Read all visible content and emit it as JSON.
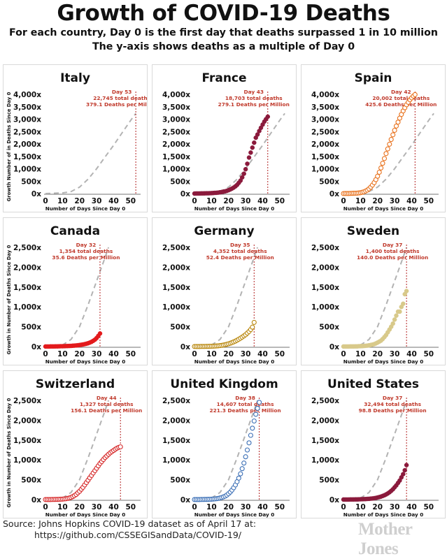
{
  "page": {
    "title": "Growth of COVID-19 Deaths",
    "subtitle1": "For each country, Day 0 is the first day that deaths surpassed 1 in 10 million",
    "subtitle2": "The y-axis shows deaths as a multiple of Day 0",
    "source_line1": "Source: Johns Hopkins COVID-19 dataset as of April 17 at:",
    "source_line2": "https://github.com/CSSEGISandData/COVID-19/",
    "brand": "Mother Jones"
  },
  "colors": {
    "dashed_reference": "#b3b3b3",
    "day_marker": "#b22222",
    "annotation_text": "#c0392b",
    "gridline_axis": "#222222"
  },
  "chart_data": [
    {
      "type": "scatter",
      "country": "Italy",
      "xlabel": "Number of Days Since Day 0",
      "ylabel": "Growth Number of in Deaths Since Day 0",
      "ylim": [
        0,
        4000
      ],
      "yticks": [
        0,
        500,
        1000,
        1500,
        2000,
        2500,
        3000,
        3500,
        4000
      ],
      "ytick_labels": [
        "0x",
        "500x",
        "1,000x",
        "1,500x",
        "2,000x",
        "2,500x",
        "3,000x",
        "3,500x",
        "4,000x"
      ],
      "xlim": [
        0,
        55
      ],
      "xticks": [
        0,
        10,
        20,
        30,
        40,
        50
      ],
      "xtick_labels": [
        "0",
        "10",
        "20",
        "30",
        "40",
        "50"
      ],
      "marker_day": 53,
      "annotation": [
        "Day 53",
        "22,745 total deaths",
        "379.1 Deaths per Million"
      ],
      "series_style": "none",
      "color": "#999999",
      "reference": {
        "x": [
          0,
          10,
          15,
          20,
          25,
          30,
          35,
          40,
          45,
          50,
          53
        ],
        "y": [
          0,
          25,
          80,
          260,
          580,
          1000,
          1480,
          1950,
          2450,
          2950,
          3230
        ]
      },
      "x": [],
      "y": []
    },
    {
      "type": "scatter",
      "country": "France",
      "xlabel": "Number of Days Since Day 0",
      "ylabel": "",
      "ylim": [
        0,
        4000
      ],
      "yticks": [
        0,
        500,
        1000,
        1500,
        2000,
        2500,
        3000,
        3500,
        4000
      ],
      "ytick_labels": [
        "0x",
        "500x",
        "1,000x",
        "1,500x",
        "2,000x",
        "2,500x",
        "3,000x",
        "3,500x",
        "4,000x"
      ],
      "xlim": [
        0,
        55
      ],
      "xticks": [
        0,
        10,
        20,
        30,
        40,
        50
      ],
      "xtick_labels": [
        "0",
        "10",
        "20",
        "30",
        "40",
        "50"
      ],
      "marker_day": 43,
      "annotation": [
        "Day 43",
        "18,703 total deaths",
        "279.1 Deaths per Million"
      ],
      "series_style": "filled",
      "color": "#8b1a3c",
      "reference": {
        "x": [
          0,
          10,
          15,
          20,
          25,
          30,
          35,
          40,
          45,
          50,
          53
        ],
        "y": [
          0,
          25,
          80,
          260,
          580,
          1000,
          1480,
          1950,
          2450,
          2950,
          3230
        ]
      },
      "x": [
        0,
        1,
        2,
        3,
        4,
        5,
        6,
        7,
        8,
        9,
        10,
        11,
        12,
        13,
        14,
        15,
        16,
        17,
        18,
        19,
        20,
        21,
        22,
        23,
        24,
        25,
        26,
        27,
        28,
        29,
        30,
        31,
        32,
        33,
        34,
        35,
        36,
        37,
        38,
        39,
        40,
        41,
        42,
        43
      ],
      "y": [
        1,
        2,
        3,
        4,
        5,
        6,
        8,
        10,
        12,
        15,
        18,
        22,
        27,
        32,
        40,
        50,
        62,
        75,
        90,
        110,
        135,
        165,
        200,
        240,
        290,
        350,
        430,
        520,
        650,
        800,
        980,
        1200,
        1450,
        1650,
        1850,
        2050,
        2250,
        2380,
        2520,
        2650,
        2780,
        2900,
        3000,
        3100
      ]
    },
    {
      "type": "scatter",
      "country": "Spain",
      "xlabel": "Number of Days Since Day 0",
      "ylabel": "",
      "ylim": [
        0,
        4000
      ],
      "yticks": [
        0,
        500,
        1000,
        1500,
        2000,
        2500,
        3000,
        3500,
        4000
      ],
      "ytick_labels": [
        "0x",
        "500x",
        "1,000x",
        "1,500x",
        "2,000x",
        "2,500x",
        "3,000x",
        "3,500x",
        "4,000x"
      ],
      "xlim": [
        0,
        55
      ],
      "xticks": [
        0,
        10,
        20,
        30,
        40,
        50
      ],
      "xtick_labels": [
        "0",
        "10",
        "20",
        "30",
        "40",
        "50"
      ],
      "marker_day": 42,
      "annotation": [
        "Day 42",
        "20,002 total deaths",
        "425.6 Deaths per Million"
      ],
      "series_style": "open",
      "color": "#e8701a",
      "reference": {
        "x": [
          0,
          10,
          15,
          20,
          25,
          30,
          35,
          40,
          45,
          50,
          53
        ],
        "y": [
          0,
          25,
          80,
          260,
          580,
          1000,
          1480,
          1950,
          2450,
          2950,
          3230
        ]
      },
      "x": [
        0,
        1,
        2,
        3,
        4,
        5,
        6,
        7,
        8,
        9,
        10,
        11,
        12,
        13,
        14,
        15,
        16,
        17,
        18,
        19,
        20,
        21,
        22,
        23,
        24,
        25,
        26,
        27,
        28,
        29,
        30,
        31,
        32,
        33,
        34,
        35,
        36,
        37,
        38,
        39,
        40,
        41,
        42
      ],
      "y": [
        1,
        2,
        3,
        4,
        6,
        8,
        10,
        14,
        18,
        25,
        35,
        50,
        70,
        100,
        140,
        190,
        260,
        340,
        440,
        560,
        700,
        860,
        1030,
        1220,
        1410,
        1610,
        1800,
        1990,
        2180,
        2370,
        2550,
        2720,
        2880,
        3040,
        3190,
        3330,
        3460,
        3580,
        3680,
        3780,
        3860,
        3930,
        3990
      ]
    },
    {
      "type": "scatter",
      "country": "Canada",
      "xlabel": "Number of Days Since Day 0",
      "ylabel": "Growth in Number of Deaths Since Day 0",
      "ylim": [
        0,
        2500
      ],
      "yticks": [
        0,
        500,
        1000,
        1500,
        2000,
        2500
      ],
      "ytick_labels": [
        "0x",
        "500x",
        "1,000x",
        "1,500x",
        "2,000x",
        "2,500x"
      ],
      "xlim": [
        0,
        55
      ],
      "xticks": [
        0,
        10,
        20,
        30,
        40,
        50
      ],
      "xtick_labels": [
        "0",
        "10",
        "20",
        "30",
        "40",
        "50"
      ],
      "marker_day": 32,
      "annotation": [
        "Day 32",
        "1,354 total deaths",
        "35.6 Deaths per Million"
      ],
      "series_style": "filled",
      "color": "#e31a1c",
      "reference": {
        "x": [
          0,
          10,
          15,
          20,
          25,
          30,
          35,
          37
        ],
        "y": [
          0,
          40,
          180,
          500,
          1050,
          1650,
          2250,
          2500
        ]
      },
      "x": [
        0,
        1,
        2,
        3,
        4,
        5,
        6,
        7,
        8,
        9,
        10,
        11,
        12,
        13,
        14,
        15,
        16,
        17,
        18,
        19,
        20,
        21,
        22,
        23,
        24,
        25,
        26,
        27,
        28,
        29,
        30,
        31,
        32
      ],
      "y": [
        1,
        2,
        2,
        3,
        3,
        4,
        5,
        6,
        7,
        8,
        9,
        10,
        12,
        14,
        16,
        18,
        21,
        24,
        28,
        33,
        38,
        45,
        53,
        62,
        72,
        85,
        100,
        120,
        145,
        175,
        215,
        270,
        330
      ]
    },
    {
      "type": "scatter",
      "country": "Germany",
      "xlabel": "Number of Days Since Day 0",
      "ylabel": "",
      "ylim": [
        0,
        2500
      ],
      "yticks": [
        0,
        500,
        1000,
        1500,
        2000,
        2500
      ],
      "ytick_labels": [
        "0x",
        "500x",
        "1,000x",
        "1,500x",
        "2,000x",
        "2,500x"
      ],
      "xlim": [
        0,
        55
      ],
      "xticks": [
        0,
        10,
        20,
        30,
        40,
        50
      ],
      "xtick_labels": [
        "0",
        "10",
        "20",
        "30",
        "40",
        "50"
      ],
      "marker_day": 35,
      "annotation": [
        "Day 35",
        "4,352 total deaths",
        "52.4 Deaths per Million"
      ],
      "series_style": "open",
      "color": "#b8860b",
      "reference": {
        "x": [
          0,
          10,
          15,
          20,
          25,
          30,
          35,
          37
        ],
        "y": [
          0,
          40,
          180,
          500,
          1050,
          1650,
          2250,
          2500
        ]
      },
      "x": [
        0,
        1,
        2,
        3,
        4,
        5,
        6,
        7,
        8,
        9,
        10,
        11,
        12,
        13,
        14,
        15,
        16,
        17,
        18,
        19,
        20,
        21,
        22,
        23,
        24,
        25,
        26,
        27,
        28,
        29,
        30,
        31,
        32,
        33,
        34,
        35
      ],
      "y": [
        1,
        1,
        2,
        2,
        3,
        3,
        4,
        5,
        6,
        7,
        8,
        10,
        12,
        15,
        19,
        24,
        30,
        38,
        47,
        58,
        70,
        84,
        100,
        118,
        138,
        160,
        185,
        212,
        240,
        270,
        300,
        340,
        380,
        430,
        490,
        610
      ]
    },
    {
      "type": "scatter",
      "country": "Sweden",
      "xlabel": "Number of Days Since Day 0",
      "ylabel": "",
      "ylim": [
        0,
        2500
      ],
      "yticks": [
        0,
        500,
        1000,
        1500,
        2000,
        2500
      ],
      "ytick_labels": [
        "0x",
        "500x",
        "1,000x",
        "1,500x",
        "2,000x",
        "2,500x"
      ],
      "xlim": [
        0,
        55
      ],
      "xticks": [
        0,
        10,
        20,
        30,
        40,
        50
      ],
      "xtick_labels": [
        "0",
        "10",
        "20",
        "30",
        "40",
        "50"
      ],
      "marker_day": 37,
      "annotation": [
        "Day 37",
        "1,400 total deaths",
        "140.0 Deaths per Million"
      ],
      "series_style": "filled",
      "color": "#d8c98a",
      "reference": {
        "x": [
          0,
          10,
          15,
          20,
          25,
          30,
          35,
          37
        ],
        "y": [
          0,
          40,
          180,
          500,
          1050,
          1650,
          2250,
          2500
        ]
      },
      "x": [
        0,
        1,
        2,
        3,
        4,
        5,
        6,
        7,
        8,
        9,
        10,
        11,
        12,
        13,
        14,
        15,
        16,
        17,
        18,
        19,
        20,
        21,
        22,
        23,
        24,
        25,
        26,
        27,
        28,
        29,
        30,
        31,
        32,
        33,
        34,
        35,
        36,
        37
      ],
      "y": [
        1,
        1,
        2,
        2,
        3,
        3,
        4,
        5,
        6,
        8,
        10,
        12,
        15,
        20,
        25,
        32,
        40,
        50,
        62,
        80,
        100,
        125,
        150,
        190,
        240,
        290,
        360,
        430,
        500,
        580,
        680,
        780,
        880,
        880,
        1000,
        1080,
        1320,
        1400
      ]
    },
    {
      "type": "scatter",
      "country": "Switzerland",
      "xlabel": "Number of Days Since Day 0",
      "ylabel": "Growth in Number of Deaths Since Day 0",
      "ylim": [
        0,
        2500
      ],
      "yticks": [
        0,
        500,
        1000,
        1500,
        2000,
        2500
      ],
      "ytick_labels": [
        "0x",
        "500x",
        "1,000x",
        "1,500x",
        "2,000x",
        "2,500x"
      ],
      "xlim": [
        0,
        55
      ],
      "xticks": [
        0,
        10,
        20,
        30,
        40,
        50
      ],
      "xtick_labels": [
        "0",
        "10",
        "20",
        "30",
        "40",
        "50"
      ],
      "marker_day": 44,
      "annotation": [
        "Day 44",
        "1,327 total deaths",
        "156.1 Deaths per Million"
      ],
      "series_style": "open",
      "color": "#d62728",
      "reference": {
        "x": [
          0,
          10,
          15,
          20,
          25,
          30,
          35,
          37
        ],
        "y": [
          0,
          40,
          180,
          500,
          1050,
          1650,
          2250,
          2500
        ]
      },
      "x": [
        0,
        1,
        2,
        3,
        4,
        5,
        6,
        7,
        8,
        9,
        10,
        11,
        12,
        13,
        14,
        15,
        16,
        17,
        18,
        19,
        20,
        21,
        22,
        23,
        24,
        25,
        26,
        27,
        28,
        29,
        30,
        31,
        32,
        33,
        34,
        35,
        36,
        37,
        38,
        39,
        40,
        41,
        42,
        43,
        44
      ],
      "y": [
        1,
        1,
        2,
        2,
        3,
        4,
        5,
        6,
        8,
        10,
        13,
        17,
        22,
        30,
        40,
        55,
        75,
        100,
        130,
        170,
        210,
        260,
        310,
        370,
        430,
        490,
        550,
        610,
        670,
        730,
        790,
        850,
        910,
        960,
        1010,
        1060,
        1100,
        1140,
        1180,
        1210,
        1240,
        1270,
        1295,
        1315,
        1330
      ]
    },
    {
      "type": "scatter",
      "country": "United Kingdom",
      "xlabel": "Number of Days Since Day 0",
      "ylabel": "",
      "ylim": [
        0,
        2500
      ],
      "yticks": [
        0,
        500,
        1000,
        1500,
        2000,
        2500
      ],
      "ytick_labels": [
        "0x",
        "500x",
        "1,000x",
        "1,500x",
        "2,000x",
        "2,500x"
      ],
      "xlim": [
        0,
        55
      ],
      "xticks": [
        0,
        10,
        20,
        30,
        40,
        50
      ],
      "xtick_labels": [
        "0",
        "10",
        "20",
        "30",
        "40",
        "50"
      ],
      "marker_day": 38,
      "annotation": [
        "Day 38",
        "14,607 total deaths",
        "221.3 Deaths per Million"
      ],
      "series_style": "open",
      "color": "#3b6fb6",
      "reference": {
        "x": [
          0,
          10,
          15,
          20,
          25,
          30,
          35,
          37
        ],
        "y": [
          0,
          40,
          180,
          500,
          1050,
          1650,
          2250,
          2500
        ]
      },
      "x": [
        0,
        1,
        2,
        3,
        4,
        5,
        6,
        7,
        8,
        9,
        10,
        11,
        12,
        13,
        14,
        15,
        16,
        17,
        18,
        19,
        20,
        21,
        22,
        23,
        24,
        25,
        26,
        27,
        28,
        29,
        30,
        31,
        32,
        33,
        34,
        35,
        36,
        37,
        38
      ],
      "y": [
        1,
        1,
        2,
        2,
        3,
        4,
        5,
        6,
        7,
        9,
        11,
        14,
        18,
        23,
        30,
        40,
        52,
        68,
        88,
        115,
        150,
        190,
        240,
        300,
        370,
        450,
        540,
        650,
        780,
        920,
        1080,
        1250,
        1430,
        1620,
        1800,
        1980,
        2150,
        2300,
        2450
      ]
    },
    {
      "type": "scatter",
      "country": "United States",
      "xlabel": "Number of Days Since Day 0",
      "ylabel": "",
      "ylim": [
        0,
        2500
      ],
      "yticks": [
        0,
        500,
        1000,
        1500,
        2000,
        2500
      ],
      "ytick_labels": [
        "0x",
        "500x",
        "1,000x",
        "1,500x",
        "2,000x",
        "2,500x"
      ],
      "xlim": [
        0,
        55
      ],
      "xticks": [
        0,
        10,
        20,
        30,
        40,
        50
      ],
      "xtick_labels": [
        "0",
        "10",
        "20",
        "30",
        "40",
        "50"
      ],
      "marker_day": 37,
      "annotation": [
        "Day 37",
        "32,494 total deaths",
        "98.8 Deaths per Million"
      ],
      "series_style": "filled",
      "color": "#8b1a3c",
      "reference": {
        "x": [
          0,
          10,
          15,
          20,
          25,
          30,
          35,
          37
        ],
        "y": [
          0,
          40,
          180,
          500,
          1050,
          1650,
          2250,
          2500
        ]
      },
      "x": [
        0,
        1,
        2,
        3,
        4,
        5,
        6,
        7,
        8,
        9,
        10,
        11,
        12,
        13,
        14,
        15,
        16,
        17,
        18,
        19,
        20,
        21,
        22,
        23,
        24,
        25,
        26,
        27,
        28,
        29,
        30,
        31,
        32,
        33,
        34,
        35,
        36,
        37
      ],
      "y": [
        1,
        1,
        2,
        2,
        3,
        3,
        4,
        5,
        6,
        7,
        8,
        10,
        12,
        14,
        17,
        20,
        24,
        29,
        35,
        43,
        52,
        63,
        76,
        92,
        110,
        130,
        155,
        185,
        220,
        260,
        310,
        360,
        420,
        480,
        560,
        640,
        740,
        870
      ]
    }
  ]
}
